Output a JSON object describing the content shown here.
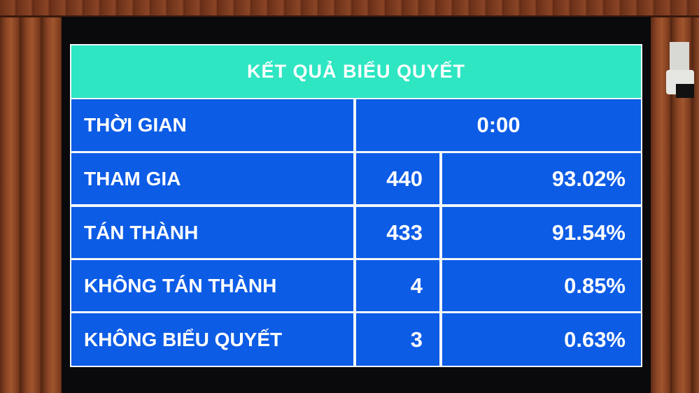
{
  "title": "KẾT QUẢ BIỂU QUYẾT",
  "time": {
    "label": "THỜI GIAN",
    "value": "0:00"
  },
  "rows": [
    {
      "label": "THAM GIA",
      "count": "440",
      "percent": "93.02%"
    },
    {
      "label": "TÁN THÀNH",
      "count": "433",
      "percent": "91.54%"
    },
    {
      "label": "KHÔNG TÁN THÀNH",
      "count": "4",
      "percent": "0.85%"
    },
    {
      "label": "KHÔNG BIỂU QUYẾT",
      "count": "3",
      "percent": "0.63%"
    }
  ],
  "colors": {
    "header": "#2ee6c2",
    "cell": "#0c5ce6",
    "text": "#ffffff"
  }
}
